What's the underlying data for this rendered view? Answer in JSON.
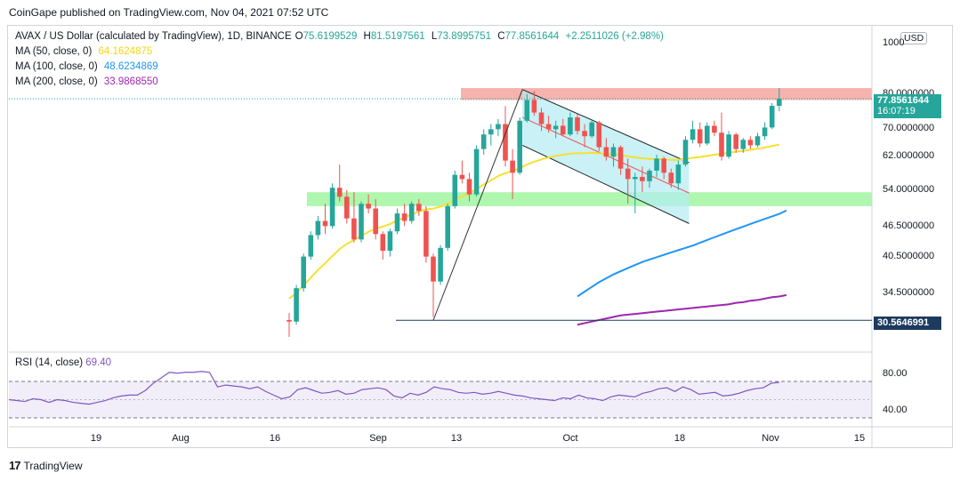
{
  "header": {
    "publisher": "CoinGape published on TradingView.com, Nov 04, 2021 07:52 UTC"
  },
  "legend": {
    "symbol": "AVAX / US Dollar (calculated by TradingView), 1D, BINANCE",
    "open_label": "O",
    "open": "75.6199529",
    "high_label": "H",
    "high": "81.5197561",
    "low_label": "L",
    "low": "73.8995751",
    "close_label": "C",
    "close": "77.8561644",
    "change": "+2.2511026 (+2.98%)",
    "ma50_label": "MA (50, close, 0)",
    "ma50_value": "64.1624875",
    "ma100_label": "MA (100, close, 0)",
    "ma100_value": "48.6234869",
    "ma200_label": "MA (200, close, 0)",
    "ma200_value": "33.9868550"
  },
  "currency_button": "USD",
  "price_tags": {
    "last_price": "77.8561644",
    "countdown": "16:07:19",
    "low_line": "30.5646991"
  },
  "rsi": {
    "label": "RSI (14, close)",
    "value": "69.40"
  },
  "footer": {
    "brand": "TradingView",
    "mark": "17"
  },
  "colors": {
    "up": "#26a69a",
    "down": "#ef5350",
    "ma50": "#f5e130",
    "ma100": "#2196f3",
    "ma200": "#9c27b0",
    "rsi": "#7e57c2",
    "resistance_zone": "#f4a6a0",
    "support_zone": "#9bf59b",
    "channel": "#b2ebf2"
  },
  "chart_data": {
    "type": "candlestick",
    "price_axis": {
      "ticks": [
        "1000",
        "80.0000000",
        "70.0000000",
        "62.0000000",
        "54.0000000",
        "46.5000000",
        "40.5000000",
        "34.5000000"
      ],
      "scale": "log"
    },
    "time_axis": {
      "ticks": [
        "19",
        "Aug",
        "16",
        "Sep",
        "13",
        "Oct",
        "18",
        "Nov",
        "15"
      ]
    },
    "rsi_axis": {
      "ticks": [
        "80.00",
        "40.00"
      ]
    },
    "zones": {
      "resistance": [
        77.5,
        81.5
      ],
      "support": [
        49.5,
        52.5
      ]
    },
    "horizontal_line": 30.5646991,
    "candles": [
      {
        "o": 30.6,
        "h": 31.5,
        "l": 28.5,
        "c": 30.4
      },
      {
        "o": 30.4,
        "h": 35.5,
        "l": 30.0,
        "c": 35.0
      },
      {
        "o": 35.0,
        "h": 40.5,
        "l": 34.5,
        "c": 40.0
      },
      {
        "o": 40.0,
        "h": 44.5,
        "l": 39.5,
        "c": 43.8
      },
      {
        "o": 43.8,
        "h": 47.5,
        "l": 43.0,
        "c": 46.5
      },
      {
        "o": 46.5,
        "h": 50.0,
        "l": 44.0,
        "c": 45.5
      },
      {
        "o": 45.5,
        "h": 54.5,
        "l": 45.0,
        "c": 53.5
      },
      {
        "o": 53.5,
        "h": 59.0,
        "l": 50.5,
        "c": 51.5
      },
      {
        "o": 51.5,
        "h": 53.0,
        "l": 46.0,
        "c": 47.0
      },
      {
        "o": 47.0,
        "h": 52.5,
        "l": 42.5,
        "c": 43.0
      },
      {
        "o": 43.0,
        "h": 50.5,
        "l": 42.5,
        "c": 50.0
      },
      {
        "o": 50.0,
        "h": 52.0,
        "l": 48.0,
        "c": 49.0
      },
      {
        "o": 49.0,
        "h": 51.0,
        "l": 43.0,
        "c": 44.0
      },
      {
        "o": 44.0,
        "h": 44.5,
        "l": 39.5,
        "c": 41.0
      },
      {
        "o": 41.0,
        "h": 45.0,
        "l": 40.0,
        "c": 44.5
      },
      {
        "o": 44.5,
        "h": 49.0,
        "l": 44.0,
        "c": 48.0
      },
      {
        "o": 48.0,
        "h": 50.0,
        "l": 45.5,
        "c": 46.5
      },
      {
        "o": 46.5,
        "h": 50.5,
        "l": 46.0,
        "c": 50.0
      },
      {
        "o": 50.0,
        "h": 51.0,
        "l": 47.5,
        "c": 48.5
      },
      {
        "o": 48.5,
        "h": 49.5,
        "l": 39.0,
        "c": 40.0
      },
      {
        "o": 40.0,
        "h": 40.5,
        "l": 31.0,
        "c": 36.0
      },
      {
        "o": 36.0,
        "h": 42.0,
        "l": 35.5,
        "c": 41.5
      },
      {
        "o": 41.5,
        "h": 50.0,
        "l": 41.0,
        "c": 49.5
      },
      {
        "o": 49.5,
        "h": 57.5,
        "l": 49.0,
        "c": 56.5
      },
      {
        "o": 56.5,
        "h": 60.0,
        "l": 54.5,
        "c": 55.5
      },
      {
        "o": 55.5,
        "h": 57.0,
        "l": 50.5,
        "c": 52.0
      },
      {
        "o": 52.0,
        "h": 64.0,
        "l": 51.5,
        "c": 63.0
      },
      {
        "o": 63.0,
        "h": 68.5,
        "l": 61.5,
        "c": 67.0
      },
      {
        "o": 67.0,
        "h": 70.0,
        "l": 64.0,
        "c": 68.5
      },
      {
        "o": 68.5,
        "h": 71.5,
        "l": 66.5,
        "c": 70.0
      },
      {
        "o": 70.0,
        "h": 75.5,
        "l": 58.5,
        "c": 60.0
      },
      {
        "o": 60.0,
        "h": 63.0,
        "l": 51.0,
        "c": 57.0
      },
      {
        "o": 57.0,
        "h": 72.0,
        "l": 56.5,
        "c": 71.0
      },
      {
        "o": 71.0,
        "h": 79.5,
        "l": 70.5,
        "c": 77.5
      },
      {
        "o": 77.5,
        "h": 80.5,
        "l": 72.5,
        "c": 73.5
      },
      {
        "o": 73.5,
        "h": 75.0,
        "l": 68.0,
        "c": 70.0
      },
      {
        "o": 70.0,
        "h": 72.5,
        "l": 67.5,
        "c": 68.5
      },
      {
        "o": 68.5,
        "h": 71.0,
        "l": 66.0,
        "c": 69.5
      },
      {
        "o": 69.5,
        "h": 71.5,
        "l": 66.5,
        "c": 67.0
      },
      {
        "o": 67.0,
        "h": 73.5,
        "l": 66.5,
        "c": 72.0
      },
      {
        "o": 72.0,
        "h": 73.0,
        "l": 67.0,
        "c": 68.0
      },
      {
        "o": 68.0,
        "h": 70.0,
        "l": 63.5,
        "c": 66.5
      },
      {
        "o": 66.5,
        "h": 71.5,
        "l": 66.0,
        "c": 70.5
      },
      {
        "o": 70.5,
        "h": 71.0,
        "l": 62.5,
        "c": 63.5
      },
      {
        "o": 63.5,
        "h": 66.0,
        "l": 60.0,
        "c": 61.0
      },
      {
        "o": 61.0,
        "h": 64.5,
        "l": 58.5,
        "c": 63.5
      },
      {
        "o": 63.5,
        "h": 64.0,
        "l": 56.5,
        "c": 58.0
      },
      {
        "o": 58.0,
        "h": 60.5,
        "l": 50.0,
        "c": 55.5
      },
      {
        "o": 55.5,
        "h": 57.0,
        "l": 48.0,
        "c": 56.0
      },
      {
        "o": 56.0,
        "h": 58.5,
        "l": 52.5,
        "c": 55.0
      },
      {
        "o": 55.0,
        "h": 58.0,
        "l": 53.5,
        "c": 57.5
      },
      {
        "o": 57.5,
        "h": 61.5,
        "l": 56.0,
        "c": 60.5
      },
      {
        "o": 60.5,
        "h": 61.0,
        "l": 55.5,
        "c": 57.0
      },
      {
        "o": 57.0,
        "h": 58.0,
        "l": 53.5,
        "c": 54.5
      },
      {
        "o": 54.5,
        "h": 60.0,
        "l": 53.0,
        "c": 59.0
      },
      {
        "o": 59.0,
        "h": 66.5,
        "l": 58.5,
        "c": 65.5
      },
      {
        "o": 65.5,
        "h": 71.0,
        "l": 64.5,
        "c": 68.5
      },
      {
        "o": 68.5,
        "h": 70.5,
        "l": 63.5,
        "c": 64.5
      },
      {
        "o": 64.5,
        "h": 70.5,
        "l": 64.0,
        "c": 69.5
      },
      {
        "o": 69.5,
        "h": 71.0,
        "l": 66.5,
        "c": 67.5
      },
      {
        "o": 67.5,
        "h": 73.5,
        "l": 60.0,
        "c": 61.0
      },
      {
        "o": 61.0,
        "h": 68.0,
        "l": 60.5,
        "c": 67.0
      },
      {
        "o": 67.0,
        "h": 67.5,
        "l": 62.0,
        "c": 63.0
      },
      {
        "o": 63.0,
        "h": 66.0,
        "l": 62.0,
        "c": 65.5
      },
      {
        "o": 65.5,
        "h": 66.5,
        "l": 63.0,
        "c": 64.0
      },
      {
        "o": 64.0,
        "h": 67.5,
        "l": 63.5,
        "c": 66.5
      },
      {
        "o": 66.5,
        "h": 70.5,
        "l": 65.5,
        "c": 69.0
      },
      {
        "o": 69.0,
        "h": 76.5,
        "l": 68.5,
        "c": 75.6
      },
      {
        "o": 75.6,
        "h": 81.5,
        "l": 73.9,
        "c": 77.9
      }
    ],
    "ma50": [
      33.5,
      34.3,
      35.4,
      36.6,
      37.8,
      38.9,
      40.1,
      41.3,
      42.2,
      42.9,
      43.7,
      44.4,
      45.0,
      45.4,
      45.9,
      46.6,
      47.2,
      47.8,
      48.4,
      48.8,
      49.0,
      49.4,
      50.0,
      50.8,
      51.6,
      52.3,
      53.2,
      54.2,
      55.2,
      56.2,
      56.9,
      57.4,
      58.1,
      59.0,
      59.7,
      60.3,
      60.8,
      61.2,
      61.5,
      61.8,
      61.9,
      61.9,
      62.0,
      61.9,
      61.7,
      61.6,
      61.4,
      61.1,
      60.8,
      60.6,
      60.4,
      60.4,
      60.3,
      60.2,
      60.2,
      60.4,
      60.7,
      60.9,
      61.2,
      61.5,
      61.7,
      62.0,
      62.3,
      62.5,
      62.8,
      63.1,
      63.4,
      63.8,
      64.2
    ],
    "ma100_start_index": 40,
    "ma100": [
      33.8,
      34.5,
      35.2,
      35.9,
      36.5,
      37.1,
      37.6,
      38.1,
      38.6,
      39.1,
      39.5,
      39.9,
      40.3,
      40.7,
      41.1,
      41.5,
      41.9,
      42.4,
      42.9,
      43.4,
      43.9,
      44.4,
      44.9,
      45.4,
      45.9,
      46.4,
      46.9,
      47.4,
      47.9,
      48.6
    ],
    "ma200_start_index": 40,
    "ma200": [
      30.0,
      30.2,
      30.4,
      30.6,
      30.8,
      31.0,
      31.2,
      31.3,
      31.4,
      31.5,
      31.6,
      31.7,
      31.8,
      31.9,
      32.0,
      32.1,
      32.2,
      32.3,
      32.4,
      32.5,
      32.6,
      32.7,
      32.9,
      33.0,
      33.2,
      33.3,
      33.5,
      33.7,
      33.8,
      34.0
    ],
    "rsi": [
      50,
      49,
      48,
      51,
      50,
      47,
      50,
      49,
      47,
      46,
      45,
      47,
      49,
      52,
      54,
      55,
      55,
      60,
      68,
      74,
      80,
      79,
      80,
      80,
      81,
      80,
      64,
      66,
      65,
      64,
      62,
      64,
      59,
      55,
      51,
      53,
      61,
      63,
      60,
      57,
      58,
      60,
      56,
      57,
      61,
      62,
      63,
      61,
      54,
      52,
      57,
      55,
      58,
      64,
      62,
      61,
      58,
      57,
      58,
      56,
      57,
      59,
      57,
      55,
      54,
      52,
      51,
      50,
      49,
      52,
      51,
      55,
      52,
      51,
      49,
      53,
      55,
      54,
      53,
      57,
      59,
      62,
      63,
      59,
      64,
      61,
      56,
      57,
      58,
      54,
      55,
      57,
      60,
      62,
      63,
      68,
      69
    ]
  }
}
